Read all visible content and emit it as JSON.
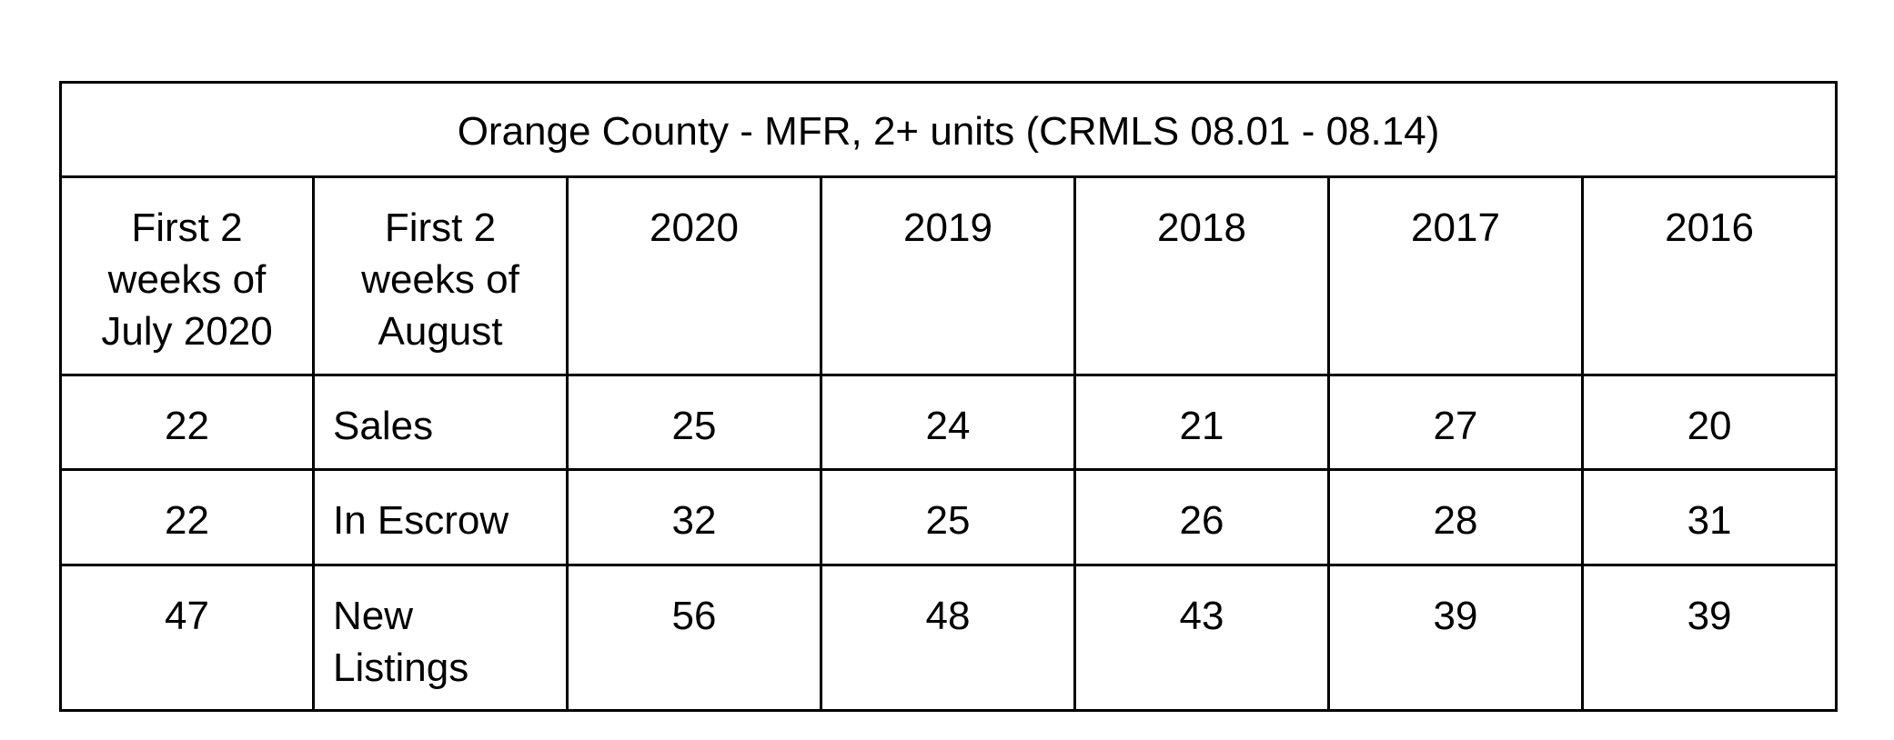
{
  "chart_data": {
    "type": "table",
    "title": "Orange County - MFR, 2+ units (CRMLS 08.01 - 08.14)",
    "columns": [
      "First 2 weeks of July 2020",
      "First 2 weeks of August",
      "2020",
      "2019",
      "2018",
      "2017",
      "2016"
    ],
    "rows": [
      {
        "july_2020": "22",
        "metric": "Sales",
        "values": [
          "25",
          "24",
          "21",
          "27",
          "20"
        ]
      },
      {
        "july_2020": "22",
        "metric": "In Escrow",
        "values": [
          "32",
          "25",
          "26",
          "28",
          "31"
        ]
      },
      {
        "july_2020": "47",
        "metric": "New Listings",
        "values": [
          "56",
          "48",
          "43",
          "39",
          "39"
        ]
      }
    ]
  }
}
